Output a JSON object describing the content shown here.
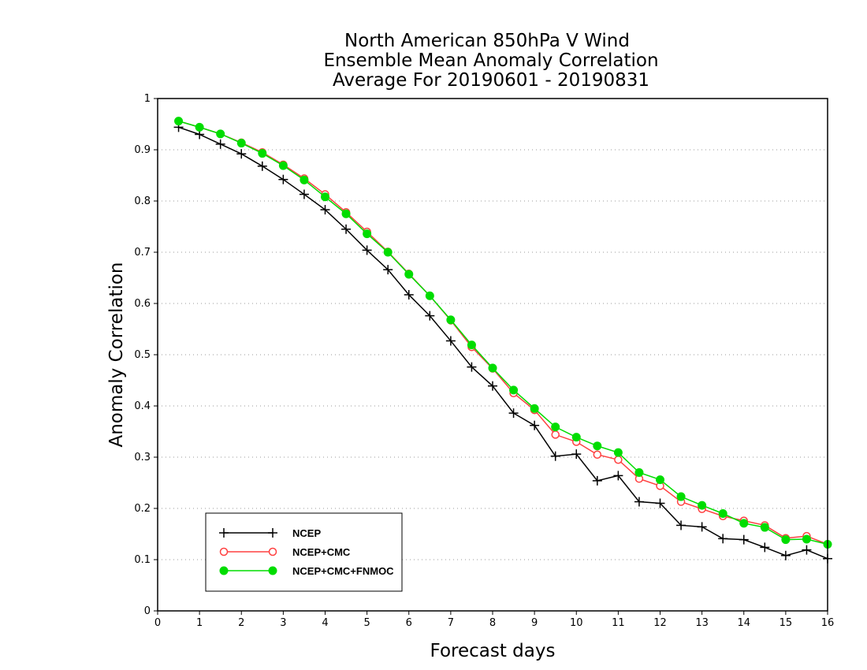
{
  "chart_data": {
    "type": "line",
    "title_lines": [
      "North American 850hPa V Wind",
      "Ensemble Mean Anomaly Correlation",
      "Average For 20190601 - 20190831"
    ],
    "xlabel": "Forecast days",
    "ylabel": "Anomaly Correlation",
    "xlim": [
      0,
      16
    ],
    "ylim": [
      0,
      1
    ],
    "xticks": [
      "0",
      "1",
      "2",
      "3",
      "4",
      "5",
      "6",
      "7",
      "8",
      "9",
      "10",
      "11",
      "12",
      "13",
      "14",
      "15",
      "16"
    ],
    "yticks": [
      "0",
      "0.1",
      "0.2",
      "0.3",
      "0.4",
      "0.5",
      "0.6",
      "0.7",
      "0.8",
      "0.9",
      "1"
    ],
    "grid": "horizontal dotted",
    "legend_position": "bottom-left",
    "x": [
      0.5,
      1,
      1.5,
      2,
      2.5,
      3,
      3.5,
      4,
      4.5,
      5,
      5.5,
      6,
      6.5,
      7,
      7.5,
      8,
      8.5,
      9,
      9.5,
      10,
      10.5,
      11,
      11.5,
      12,
      12.5,
      13,
      13.5,
      14,
      14.5,
      15,
      15.5,
      16
    ],
    "series": [
      {
        "name": "NCEP",
        "color": "#000000",
        "marker": "plus",
        "values": [
          0.944,
          0.93,
          0.911,
          0.892,
          0.868,
          0.842,
          0.813,
          0.783,
          0.745,
          0.704,
          0.666,
          0.617,
          0.576,
          0.527,
          0.476,
          0.439,
          0.386,
          0.362,
          0.302,
          0.306,
          0.254,
          0.264,
          0.213,
          0.21,
          0.167,
          0.164,
          0.141,
          0.139,
          0.124,
          0.108,
          0.119,
          0.102
        ]
      },
      {
        "name": "NCEP+CMC",
        "color": "#ff4040",
        "marker": "open-circle",
        "values": [
          0.956,
          0.944,
          0.931,
          0.914,
          0.895,
          0.871,
          0.844,
          0.813,
          0.778,
          0.74,
          0.701,
          0.658,
          0.615,
          0.567,
          0.515,
          0.473,
          0.425,
          0.392,
          0.344,
          0.33,
          0.305,
          0.295,
          0.258,
          0.244,
          0.213,
          0.199,
          0.185,
          0.176,
          0.167,
          0.142,
          0.146,
          0.13
        ]
      },
      {
        "name": "NCEP+CMC+FNMOC",
        "color": "#00dd00",
        "marker": "filled-circle",
        "values": [
          0.956,
          0.944,
          0.931,
          0.913,
          0.893,
          0.869,
          0.841,
          0.808,
          0.775,
          0.736,
          0.7,
          0.657,
          0.615,
          0.568,
          0.519,
          0.474,
          0.431,
          0.395,
          0.359,
          0.339,
          0.322,
          0.309,
          0.27,
          0.256,
          0.223,
          0.206,
          0.19,
          0.171,
          0.163,
          0.139,
          0.14,
          0.13
        ]
      }
    ]
  }
}
